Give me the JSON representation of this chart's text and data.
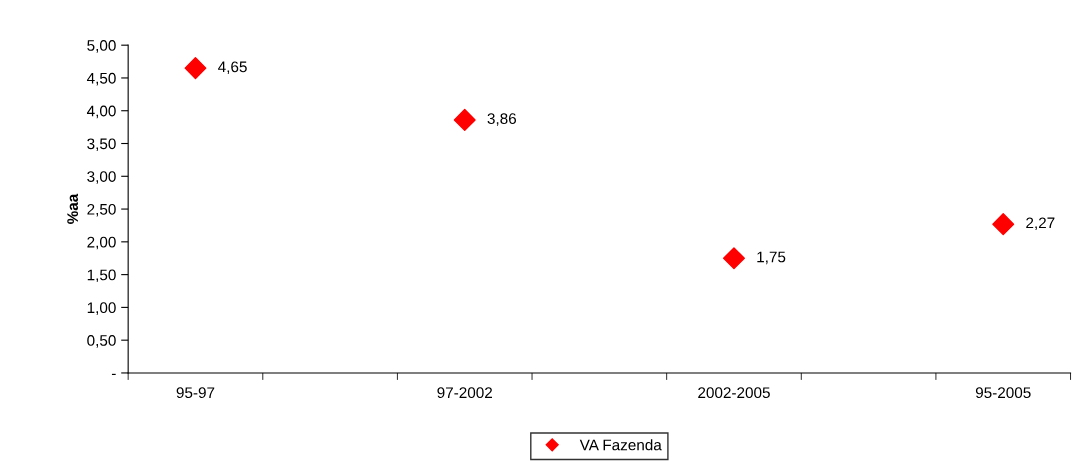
{
  "chart_data": {
    "type": "scatter",
    "ylabel": "%aa",
    "categories": [
      "95-97",
      "97-2002",
      "2002-2005",
      "95-2005"
    ],
    "series": [
      {
        "name": "VA Fazenda",
        "color": "#ff0000",
        "values": [
          4.65,
          3.86,
          1.75,
          2.27
        ],
        "value_labels": [
          "4,65",
          "3,86",
          "1,75",
          "2,27"
        ]
      }
    ],
    "ylim": [
      0,
      5
    ],
    "yticks": [
      {
        "value": 0,
        "label": "-"
      },
      {
        "value": 0.5,
        "label": "0,50"
      },
      {
        "value": 1,
        "label": "1,00"
      },
      {
        "value": 1.5,
        "label": "1,50"
      },
      {
        "value": 2,
        "label": "2,00"
      },
      {
        "value": 2.5,
        "label": "2,50"
      },
      {
        "value": 3,
        "label": "3,00"
      },
      {
        "value": 3.5,
        "label": "3,50"
      },
      {
        "value": 4,
        "label": "4,00"
      },
      {
        "value": 4.5,
        "label": "4,50"
      },
      {
        "value": 5,
        "label": "5,00"
      }
    ],
    "marker": "diamond",
    "legend": "bottom",
    "grid": false
  }
}
